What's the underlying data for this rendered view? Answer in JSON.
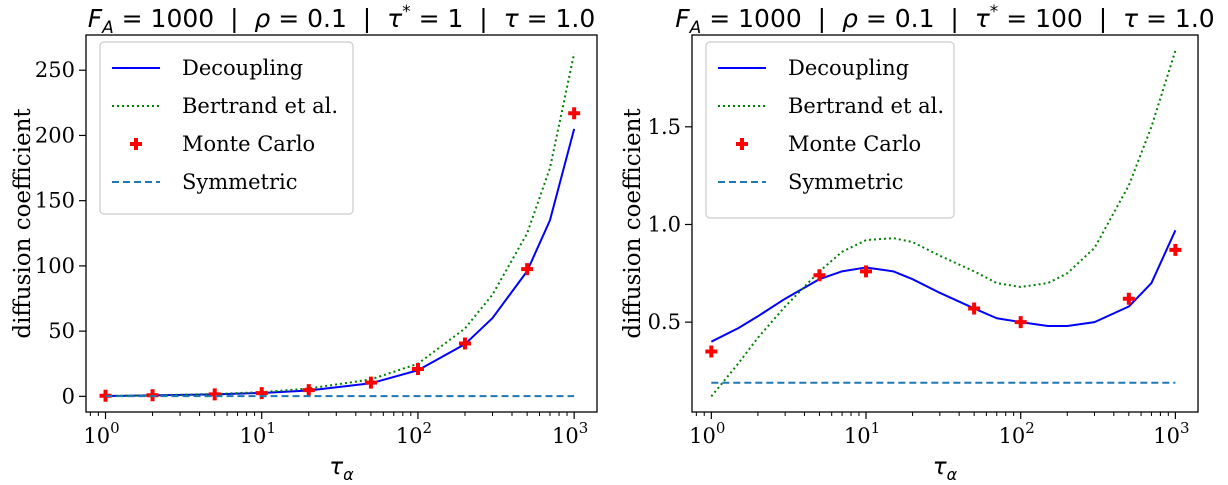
{
  "chart_data": [
    {
      "type": "line",
      "title": "$F_A = 1000$ | $\\rho = 0.1$ | $\\tau^* = 1$ | $\\tau = 1.0$",
      "title_parts": [
        "F",
        "A",
        " = 1000  |  ",
        "ρ",
        " = 0.1  |  ",
        "τ",
        "*",
        " = 1  |  ",
        "τ",
        " = 1.0"
      ],
      "xlabel": "τ_α",
      "xlabel_main": "τ",
      "xlabel_sub": "α",
      "ylabel": "diffusion coefficient",
      "x_scale": "log",
      "xlim": [
        0.75,
        1400
      ],
      "ylim": [
        -12,
        277
      ],
      "x_ticks": [
        {
          "value": 1,
          "label": "10",
          "exp": "0"
        },
        {
          "value": 10,
          "label": "10",
          "exp": "1"
        },
        {
          "value": 100,
          "label": "10",
          "exp": "2"
        },
        {
          "value": 1000,
          "label": "10",
          "exp": "3"
        }
      ],
      "y_ticks": [
        {
          "value": 0,
          "label": "0"
        },
        {
          "value": 50,
          "label": "50"
        },
        {
          "value": 100,
          "label": "100"
        },
        {
          "value": 150,
          "label": "150"
        },
        {
          "value": 200,
          "label": "200"
        },
        {
          "value": 250,
          "label": "250"
        }
      ],
      "legend_position": "top-left",
      "series": [
        {
          "name": "Decoupling",
          "style": "solid",
          "color": "#0000ff",
          "x": [
            1,
            2,
            5,
            10,
            20,
            50,
            100,
            200,
            300,
            500,
            700,
            1000
          ],
          "y": [
            0.3,
            0.7,
            1.5,
            2.6,
            4.5,
            10,
            20,
            40,
            60,
            96,
            135,
            205
          ]
        },
        {
          "name": "Bertrand et al.",
          "style": "dotted",
          "color": "#008000",
          "x": [
            1,
            2,
            5,
            10,
            20,
            50,
            100,
            200,
            300,
            500,
            700,
            1000
          ],
          "y": [
            0.3,
            0.8,
            1.8,
            3.2,
            6,
            13,
            25,
            52,
            78,
            125,
            175,
            263
          ]
        },
        {
          "name": "Monte Carlo",
          "style": "marker",
          "color": "#ff0000",
          "x": [
            1,
            2,
            5,
            10,
            20,
            50,
            100,
            200,
            500,
            1000
          ],
          "y": [
            0.5,
            0.8,
            1.5,
            2.5,
            4.8,
            10.5,
            21,
            40.5,
            97.5,
            217
          ]
        },
        {
          "name": "Symmetric",
          "style": "dashed",
          "color": "#1f77b4",
          "x": [
            1,
            1000
          ],
          "y": [
            0.2,
            0.2
          ]
        }
      ]
    },
    {
      "type": "line",
      "title": "$F_A = 1000$ | $\\rho = 0.1$ | $\\tau^* = 100$ | $\\tau = 1.0$",
      "title_parts": [
        "F",
        "A",
        " = 1000  |  ",
        "ρ",
        " = 0.1  |  ",
        "τ",
        "*",
        " = 100  |  ",
        "τ",
        " = 1.0"
      ],
      "xlabel": "τ_α",
      "xlabel_main": "τ",
      "xlabel_sub": "α",
      "ylabel": "diffusion coefficient",
      "x_scale": "log",
      "xlim": [
        0.75,
        1400
      ],
      "ylim": [
        0.04,
        1.97
      ],
      "x_ticks": [
        {
          "value": 1,
          "label": "10",
          "exp": "0"
        },
        {
          "value": 10,
          "label": "10",
          "exp": "1"
        },
        {
          "value": 100,
          "label": "10",
          "exp": "2"
        },
        {
          "value": 1000,
          "label": "10",
          "exp": "3"
        }
      ],
      "y_ticks": [
        {
          "value": 0.5,
          "label": "0.5"
        },
        {
          "value": 1.0,
          "label": "1.0"
        },
        {
          "value": 1.5,
          "label": "1.5"
        }
      ],
      "legend_position": "top-left",
      "series": [
        {
          "name": "Decoupling",
          "style": "solid",
          "color": "#0000ff",
          "x": [
            1,
            1.5,
            2,
            3,
            5,
            7,
            10,
            15,
            20,
            30,
            50,
            70,
            100,
            150,
            200,
            300,
            500,
            700,
            1000
          ],
          "y": [
            0.4,
            0.47,
            0.53,
            0.62,
            0.72,
            0.76,
            0.78,
            0.76,
            0.72,
            0.65,
            0.57,
            0.52,
            0.5,
            0.48,
            0.48,
            0.5,
            0.58,
            0.7,
            0.97
          ]
        },
        {
          "name": "Bertrand et al.",
          "style": "dotted",
          "color": "#008000",
          "x": [
            1,
            1.5,
            2,
            3,
            5,
            7,
            10,
            15,
            20,
            30,
            50,
            70,
            100,
            150,
            200,
            300,
            500,
            700,
            1000
          ],
          "y": [
            0.12,
            0.29,
            0.42,
            0.58,
            0.76,
            0.86,
            0.92,
            0.93,
            0.91,
            0.84,
            0.76,
            0.7,
            0.68,
            0.7,
            0.75,
            0.88,
            1.2,
            1.5,
            1.89
          ]
        },
        {
          "name": "Monte Carlo",
          "style": "marker",
          "color": "#ff0000",
          "x": [
            1,
            5,
            10,
            50,
            100,
            500,
            1000
          ],
          "y": [
            0.35,
            0.74,
            0.76,
            0.57,
            0.5,
            0.62,
            0.87
          ]
        },
        {
          "name": "Symmetric",
          "style": "dashed",
          "color": "#1f77b4",
          "x": [
            1,
            1000
          ],
          "y": [
            0.19,
            0.19
          ]
        }
      ]
    }
  ]
}
